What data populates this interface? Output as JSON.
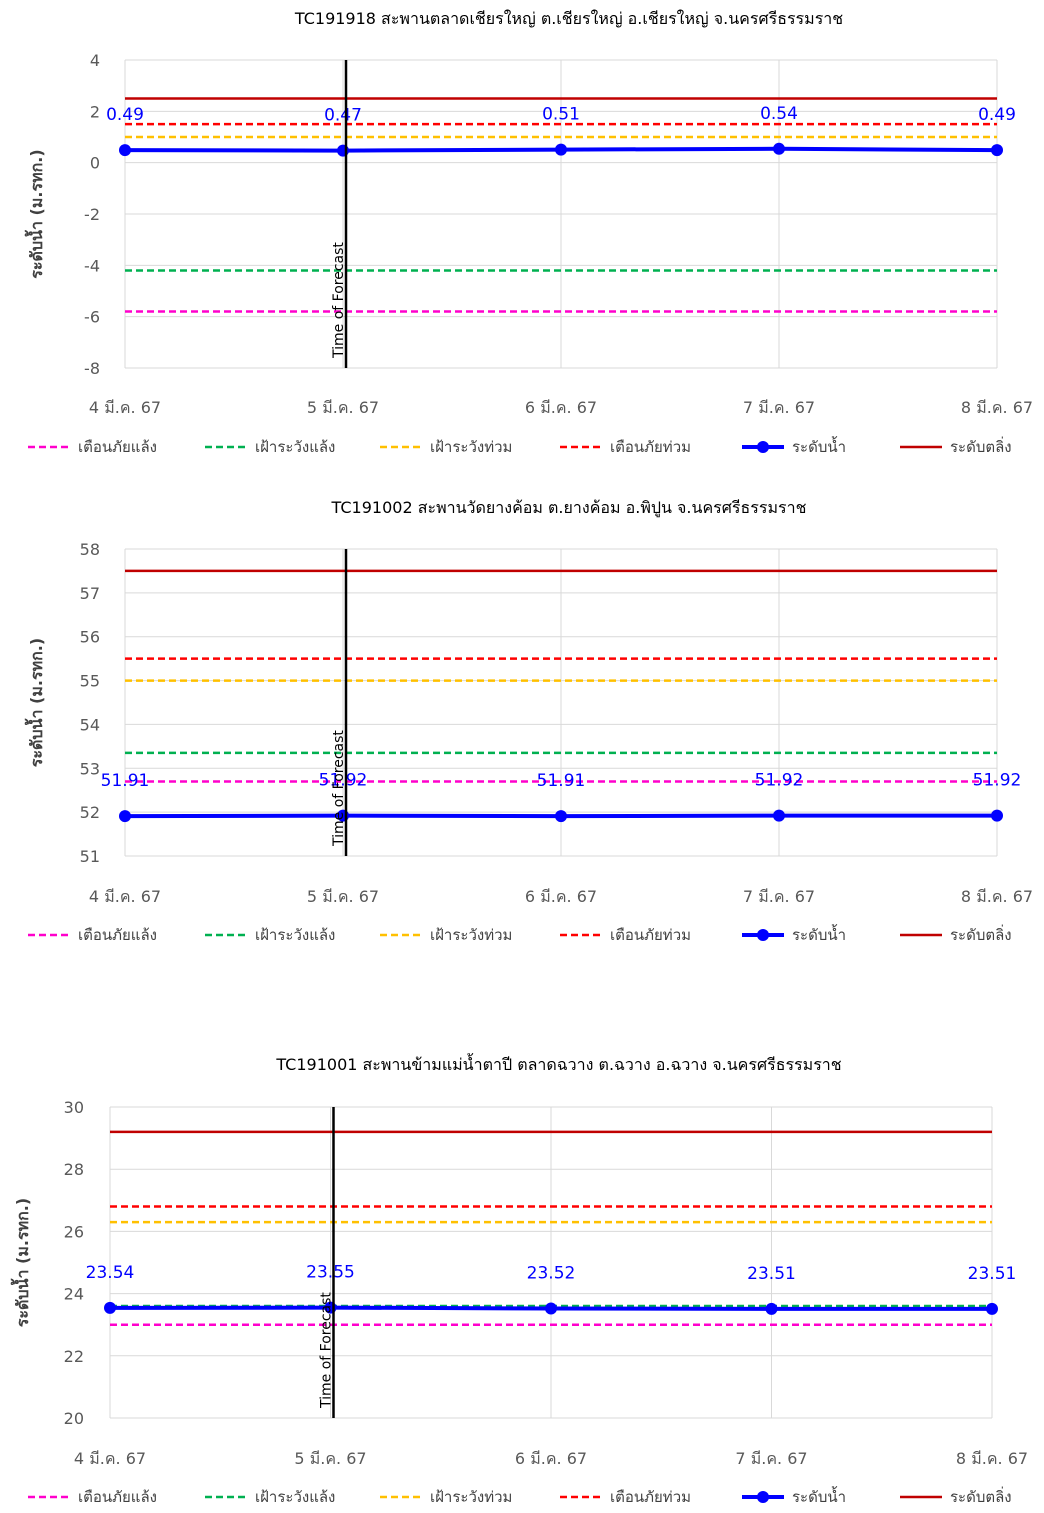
{
  "chart_data": [
    {
      "type": "line",
      "title": "TC191918 สะพานตลาดเชียรใหญ่ ต.เชียรใหญ่ อ.เชียรใหญ่ จ.นครศรีธรรมราช",
      "xlabel": "",
      "ylabel": "ระดับน้ำ (ม.รทก.)",
      "ylim": [
        -8,
        4
      ],
      "yticks": [
        "4",
        "2",
        "0",
        "-2",
        "-4",
        "-6",
        "-8"
      ],
      "categories": [
        "4 มี.ค. 67",
        "5 มี.ค. 67",
        "6 มี.ค. 67",
        "7 มี.ค. 67",
        "8 มี.ค. 67"
      ],
      "forecast_label": "Time of Forecast",
      "forecast_x": 1.0,
      "grid": true,
      "legend_position": "bottom",
      "series": [
        {
          "name": "เตือนภัยแล้ง",
          "values": [
            -5.8,
            -5.8,
            -5.8,
            -5.8,
            -5.8
          ],
          "color": "#ff00cc",
          "style": "dashed"
        },
        {
          "name": "เฝ้าระวังแล้ง",
          "values": [
            -4.2,
            -4.2,
            -4.2,
            -4.2,
            -4.2
          ],
          "color": "#00b050",
          "style": "dashed"
        },
        {
          "name": "เฝ้าระวังท่วม",
          "values": [
            1.0,
            1.0,
            1.0,
            1.0,
            1.0
          ],
          "color": "#ffc000",
          "style": "dashed"
        },
        {
          "name": "เตือนภัยท่วม",
          "values": [
            1.5,
            1.5,
            1.5,
            1.5,
            1.5
          ],
          "color": "#ff0000",
          "style": "dashed"
        },
        {
          "name": "ระดับน้ำ",
          "values": [
            0.49,
            0.47,
            0.51,
            0.54,
            0.49
          ],
          "labels": [
            "0.49",
            "0.47",
            "0.51",
            "0.54",
            "0.49"
          ],
          "color": "#0000ff",
          "style": "marker"
        },
        {
          "name": "ระดับตลิ่ง",
          "values": [
            2.5,
            2.5,
            2.5,
            2.5,
            2.5
          ],
          "color": "#c00000",
          "style": "solid"
        }
      ]
    },
    {
      "type": "line",
      "title": "TC191002 สะพานวัดยางค้อม ต.ยางค้อม อ.พิปูน จ.นครศรีธรรมราช",
      "xlabel": "",
      "ylabel": "ระดับน้ำ (ม.รทก.)",
      "ylim": [
        51,
        58
      ],
      "yticks": [
        "58",
        "57",
        "56",
        "55",
        "54",
        "53",
        "52",
        "51"
      ],
      "categories": [
        "4 มี.ค. 67",
        "5 มี.ค. 67",
        "6 มี.ค. 67",
        "7 มี.ค. 67",
        "8 มี.ค. 67"
      ],
      "forecast_label": "Time of Forecast",
      "forecast_x": 1.0,
      "grid": true,
      "legend_position": "bottom",
      "series": [
        {
          "name": "เตือนภัยแล้ง",
          "values": [
            52.7,
            52.7,
            52.7,
            52.7,
            52.7
          ],
          "color": "#ff00cc",
          "style": "dashed"
        },
        {
          "name": "เฝ้าระวังแล้ง",
          "values": [
            53.35,
            53.35,
            53.35,
            53.35,
            53.35
          ],
          "color": "#00b050",
          "style": "dashed"
        },
        {
          "name": "เฝ้าระวังท่วม",
          "values": [
            55.0,
            55.0,
            55.0,
            55.0,
            55.0
          ],
          "color": "#ffc000",
          "style": "dashed"
        },
        {
          "name": "เตือนภัยท่วม",
          "values": [
            55.5,
            55.5,
            55.5,
            55.5,
            55.5
          ],
          "color": "#ff0000",
          "style": "dashed"
        },
        {
          "name": "ระดับน้ำ",
          "values": [
            51.91,
            51.92,
            51.91,
            51.92,
            51.92
          ],
          "labels": [
            "51.91",
            "51.92",
            "51.91",
            "51.92",
            "51.92"
          ],
          "color": "#0000ff",
          "style": "marker"
        },
        {
          "name": "ระดับตลิ่ง",
          "values": [
            57.5,
            57.5,
            57.5,
            57.5,
            57.5
          ],
          "color": "#c00000",
          "style": "solid"
        }
      ]
    },
    {
      "type": "line",
      "title": "TC191001 สะพานข้ามแม่น้ำตาปี ตลาดฉวาง ต.ฉวาง อ.ฉวาง จ.นครศรีธรรมราช",
      "xlabel": "",
      "ylabel": "ระดับน้ำ (ม.รทก.)",
      "ylim": [
        20,
        30
      ],
      "yticks": [
        "30",
        "28",
        "26",
        "24",
        "22",
        "20"
      ],
      "categories": [
        "4 มี.ค. 67",
        "5 มี.ค. 67",
        "6 มี.ค. 67",
        "7 มี.ค. 67",
        "8 มี.ค. 67"
      ],
      "forecast_label": "Time of Forecast",
      "forecast_x": 1.0,
      "grid": true,
      "legend_position": "bottom",
      "series": [
        {
          "name": "เตือนภัยแล้ง",
          "values": [
            23.0,
            23.0,
            23.0,
            23.0,
            23.0
          ],
          "color": "#ff00cc",
          "style": "dashed"
        },
        {
          "name": "เฝ้าระวังแล้ง",
          "values": [
            23.6,
            23.6,
            23.6,
            23.6,
            23.6
          ],
          "color": "#00b050",
          "style": "dashed"
        },
        {
          "name": "เฝ้าระวังท่วม",
          "values": [
            26.3,
            26.3,
            26.3,
            26.3,
            26.3
          ],
          "color": "#ffc000",
          "style": "dashed"
        },
        {
          "name": "เตือนภัยท่วม",
          "values": [
            26.8,
            26.8,
            26.8,
            26.8,
            26.8
          ],
          "color": "#ff0000",
          "style": "dashed"
        },
        {
          "name": "ระดับน้ำ",
          "values": [
            23.54,
            23.55,
            23.52,
            23.51,
            23.51
          ],
          "labels": [
            "23.54",
            "23.55",
            "23.52",
            "23.51",
            "23.51"
          ],
          "color": "#0000ff",
          "style": "marker"
        },
        {
          "name": "ระดับตลิ่ง",
          "values": [
            29.2,
            29.2,
            29.2,
            29.2,
            29.2
          ],
          "color": "#c00000",
          "style": "solid"
        }
      ]
    }
  ]
}
